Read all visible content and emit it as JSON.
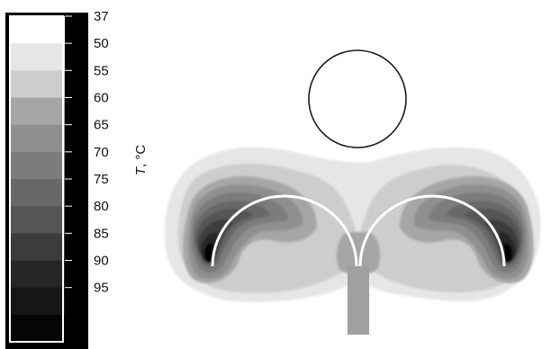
{
  "colorbar": {
    "unit_symbol": "T",
    "unit_suffix": ", °C",
    "tick_labels": [
      "37",
      "50",
      "55",
      "60",
      "65",
      "70",
      "75",
      "80",
      "85",
      "90",
      "95"
    ],
    "band_colors": [
      "#ffffff",
      "#e6e6e6",
      "#cdcdcd",
      "#a6a6a6",
      "#8f8f8f",
      "#7c7c7c",
      "#686868",
      "#555555",
      "#3c3c3c",
      "#262626",
      "#161616",
      "#050505"
    ],
    "strip_color": "#000000",
    "frame_color": "#ffffff"
  },
  "diagram": {
    "elements": [
      {
        "name": "circular-vessel",
        "shape": "circle-outline",
        "color": "#000000"
      },
      {
        "name": "left-antenna-arc",
        "shape": "semicircle",
        "color": "#ffffff"
      },
      {
        "name": "right-antenna-arc",
        "shape": "semicircle",
        "color": "#ffffff"
      },
      {
        "name": "feed-line",
        "shape": "vertical-stem",
        "color": "#a0a0a0"
      }
    ],
    "temperature_field_colors": {
      "outer_halo": "#e6e6e6",
      "zone_55": "#cdcdcd",
      "zone_60": "#a6a6a6",
      "zone_65": "#8f8f8f",
      "zone_70": "#7c7c7c",
      "zone_75": "#686868",
      "zone_80": "#555555",
      "zone_85": "#3c3c3c",
      "zone_90": "#262626",
      "zone_95": "#050505"
    }
  }
}
